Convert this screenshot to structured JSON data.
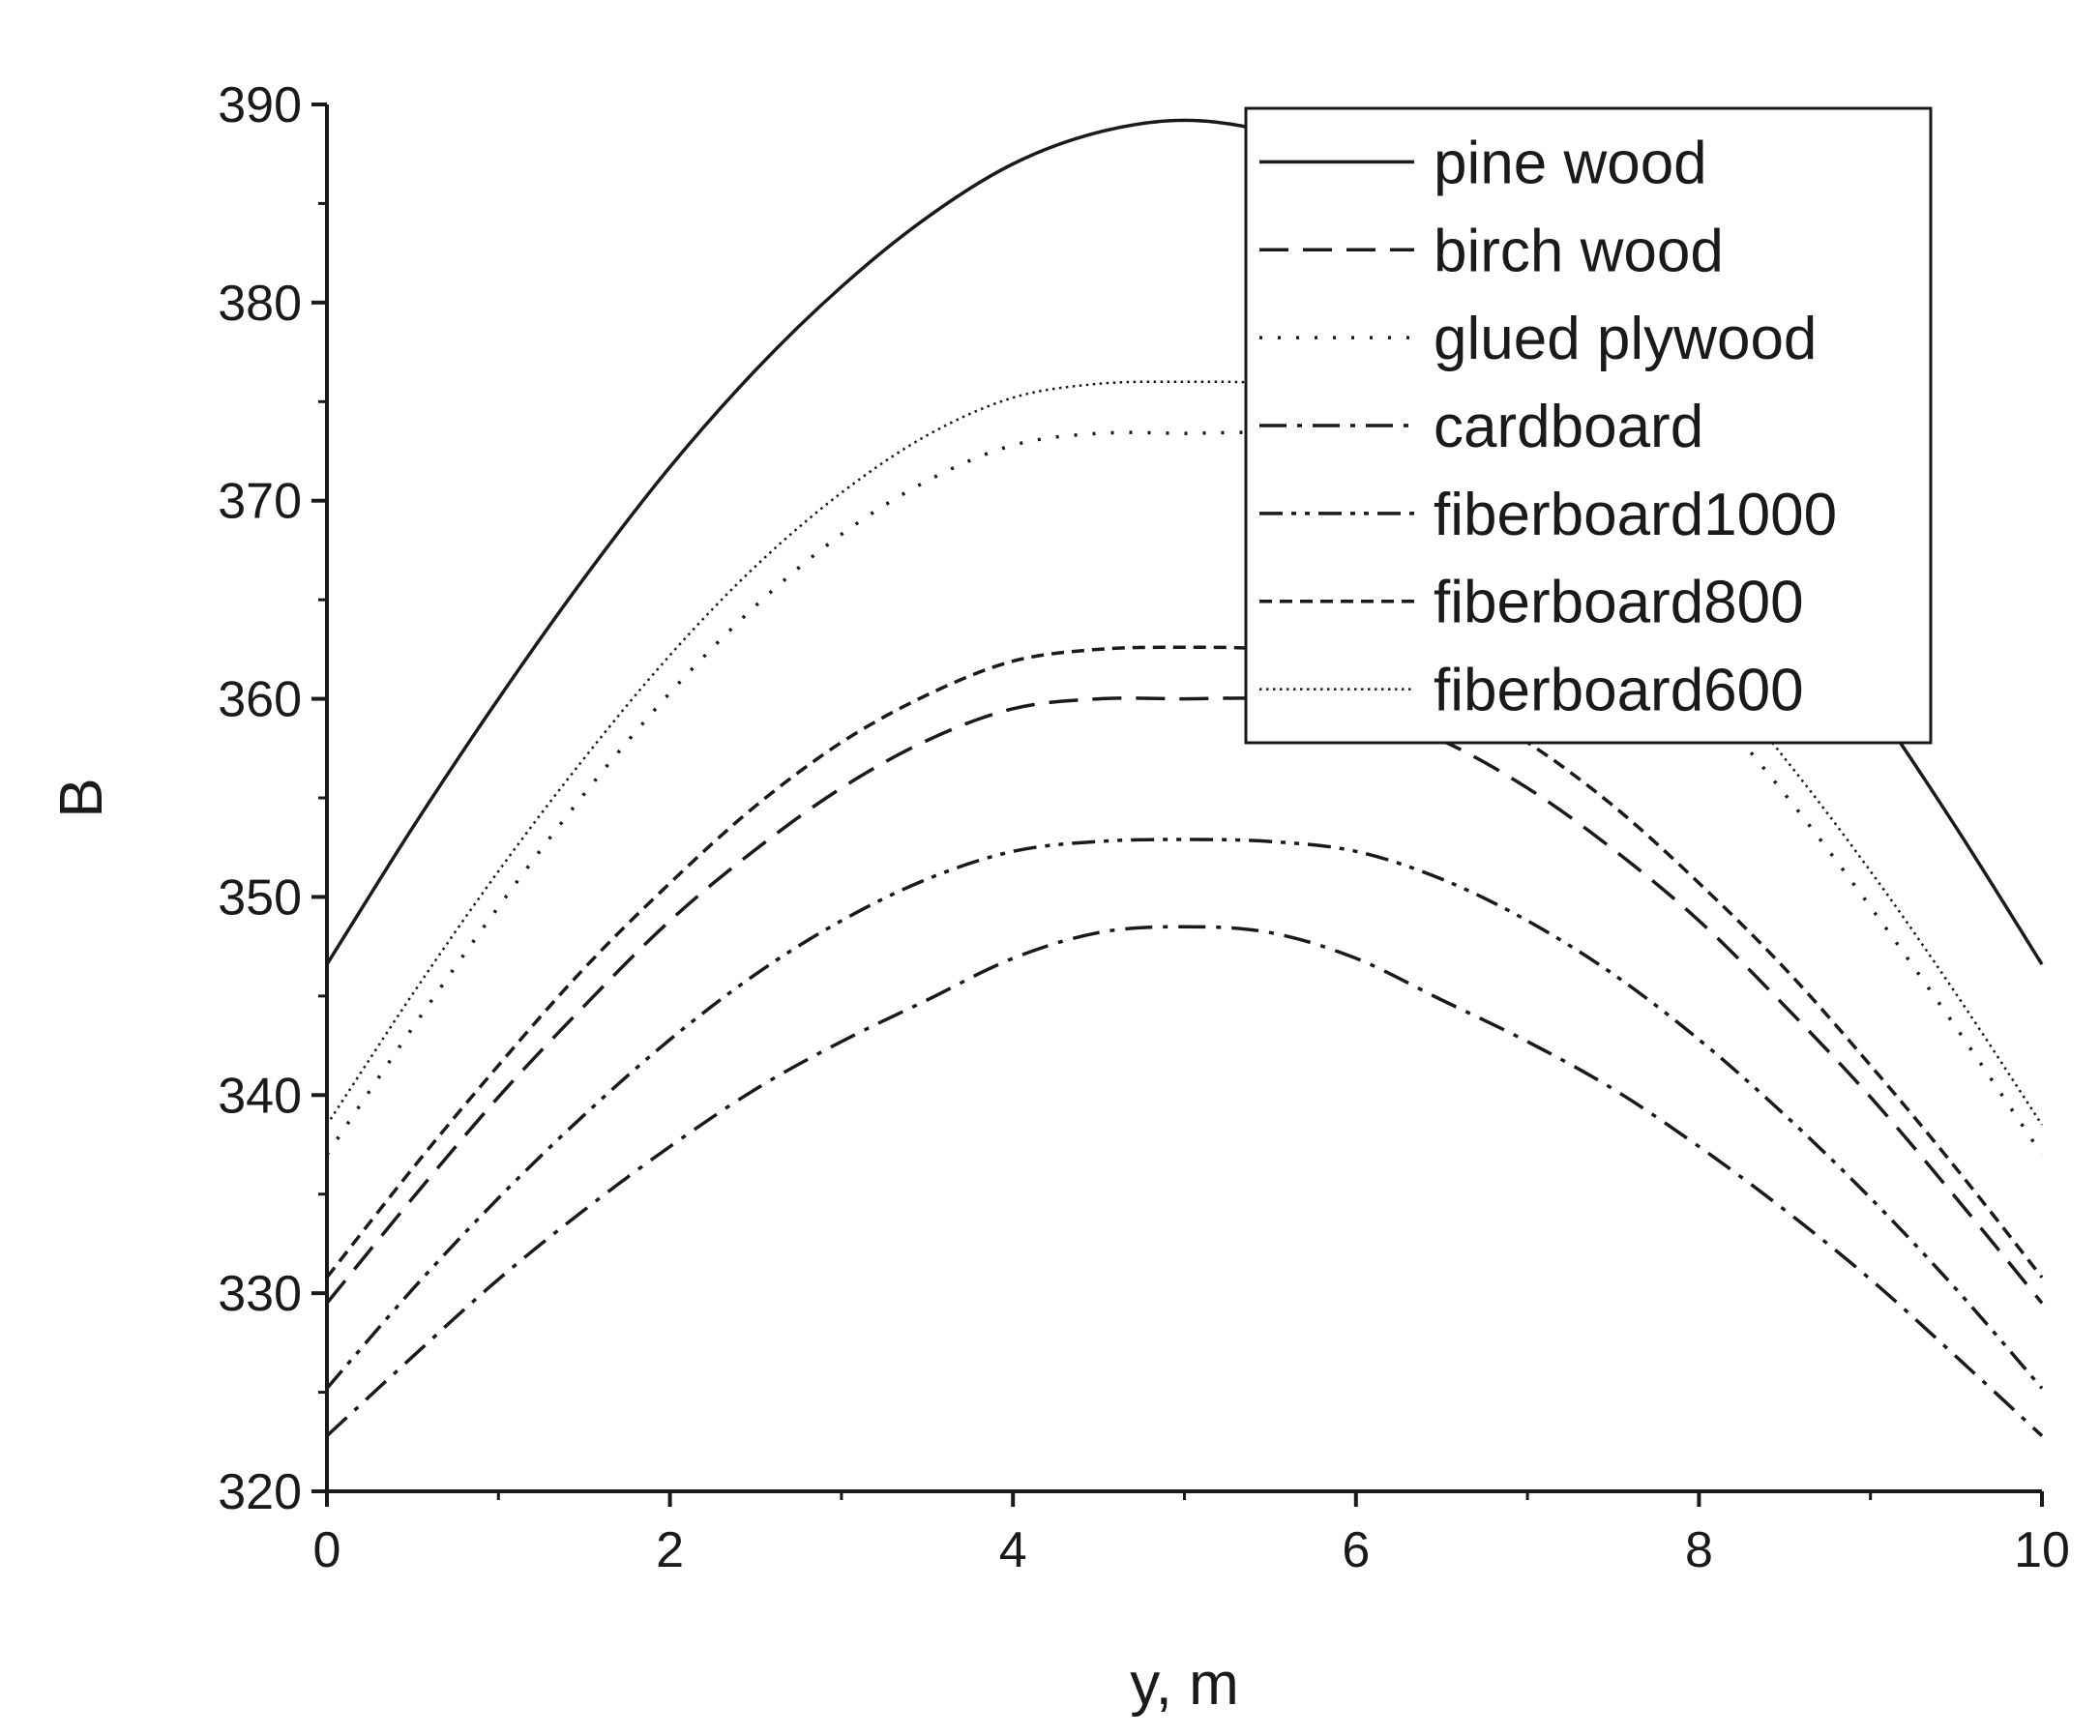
{
  "chart_data": {
    "type": "line",
    "xlabel": "y, m",
    "ylabel": "B",
    "xlim": [
      0,
      10
    ],
    "ylim": [
      320,
      390
    ],
    "xticks": [
      0,
      2,
      4,
      6,
      8,
      10
    ],
    "yticks": [
      320,
      330,
      340,
      350,
      360,
      370,
      380,
      390
    ],
    "grid": false,
    "legend": "top-right",
    "x": [
      0,
      0.5,
      1,
      1.5,
      2,
      2.5,
      3,
      3.5,
      4,
      4.5,
      5,
      5.5,
      6,
      6.5,
      7,
      7.5,
      8,
      8.5,
      9,
      9.5,
      10
    ],
    "series": [
      {
        "name": "pine wood",
        "style": "solid",
        "values": [
          346.6,
          353.5,
          360.0,
          366.1,
          371.7,
          376.6,
          380.8,
          384.3,
          387.0,
          388.6,
          389.2,
          388.6,
          387.0,
          384.3,
          380.8,
          376.6,
          371.7,
          366.1,
          360.0,
          353.5,
          346.6
        ]
      },
      {
        "name": "birch wood",
        "style": "dashed",
        "values": [
          329.5,
          334.8,
          339.9,
          344.5,
          348.8,
          352.4,
          355.5,
          357.9,
          359.5,
          360.0,
          360.0,
          360.0,
          359.5,
          357.9,
          355.5,
          352.4,
          348.8,
          344.5,
          339.9,
          334.8,
          329.5
        ]
      },
      {
        "name": "glued plywood",
        "style": "dotted",
        "values": [
          337.0,
          343.4,
          349.5,
          355.2,
          360.3,
          364.7,
          368.3,
          371.0,
          372.8,
          373.4,
          373.4,
          373.4,
          372.8,
          371.0,
          368.3,
          364.7,
          360.3,
          355.2,
          349.5,
          343.4,
          337.0
        ]
      },
      {
        "name": "cardboard",
        "style": "dash-dot",
        "values": [
          322.8,
          326.8,
          330.7,
          334.2,
          337.4,
          340.3,
          342.7,
          344.8,
          346.9,
          348.2,
          348.5,
          348.2,
          346.9,
          344.8,
          342.7,
          340.3,
          337.4,
          334.2,
          330.7,
          326.8,
          322.8
        ]
      },
      {
        "name": "fiberboard1000",
        "style": "dash-dot-dot",
        "values": [
          325.2,
          330.2,
          334.8,
          339.0,
          342.8,
          346.1,
          348.8,
          350.9,
          352.3,
          352.8,
          352.9,
          352.8,
          352.3,
          350.9,
          348.8,
          346.1,
          342.8,
          339.0,
          334.8,
          330.2,
          325.2
        ]
      },
      {
        "name": "fiberboard800",
        "style": "short-dash",
        "values": [
          330.8,
          336.3,
          341.5,
          346.4,
          350.7,
          354.6,
          357.8,
          360.2,
          361.9,
          362.5,
          362.6,
          362.5,
          361.9,
          360.2,
          357.8,
          354.6,
          350.7,
          346.4,
          341.5,
          336.3,
          330.8
        ]
      },
      {
        "name": "fiberboard600",
        "style": "fine-dot",
        "values": [
          338.5,
          345.1,
          351.3,
          357.0,
          362.2,
          366.7,
          370.4,
          373.3,
          375.2,
          375.9,
          376.0,
          375.9,
          375.2,
          373.3,
          370.4,
          366.7,
          362.2,
          357.0,
          351.3,
          345.1,
          338.5
        ]
      }
    ]
  }
}
